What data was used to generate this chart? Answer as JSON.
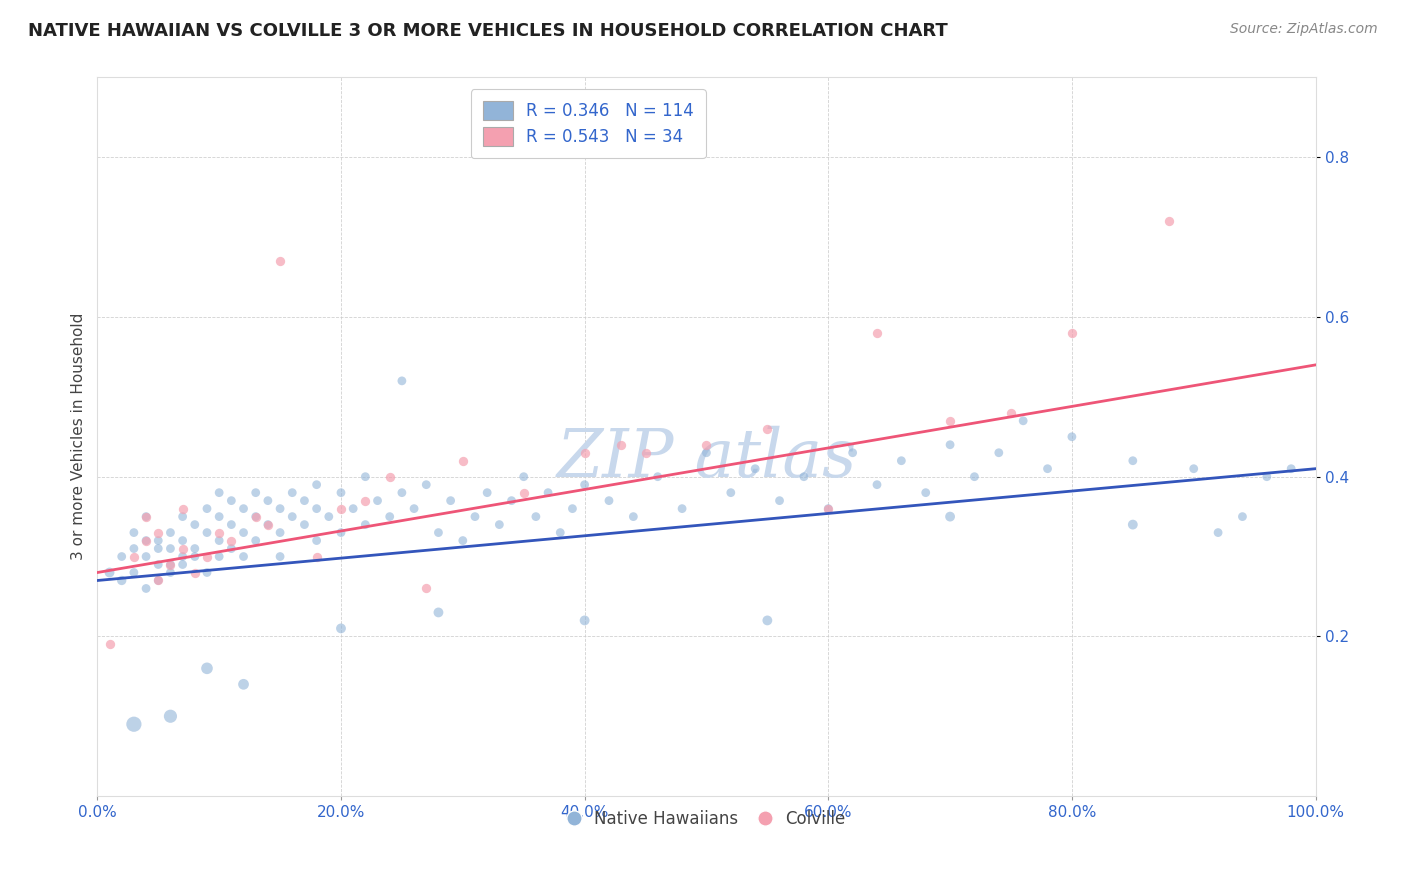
{
  "title": "NATIVE HAWAIIAN VS COLVILLE 3 OR MORE VEHICLES IN HOUSEHOLD CORRELATION CHART",
  "source": "Source: ZipAtlas.com",
  "ylabel": "3 or more Vehicles in Household",
  "xmin": 0.0,
  "xmax": 1.0,
  "ymin": 0.0,
  "ymax": 0.9,
  "xticks": [
    0.0,
    0.2,
    0.4,
    0.6,
    0.8,
    1.0
  ],
  "yticks": [
    0.2,
    0.4,
    0.6,
    0.8
  ],
  "xtick_labels": [
    "0.0%",
    "20.0%",
    "40.0%",
    "60.0%",
    "80.0%",
    "100.0%"
  ],
  "ytick_labels": [
    "20.0%",
    "40.0%",
    "60.0%",
    "80.0%"
  ],
  "legend_blue_label": "R = 0.346   N = 114",
  "legend_pink_label": "R = 0.543   N = 34",
  "legend_bottom_blue": "Native Hawaiians",
  "legend_bottom_pink": "Colville",
  "blue_color": "#92B4D8",
  "pink_color": "#F4A0B0",
  "blue_line_color": "#3355BB",
  "pink_line_color": "#EE5577",
  "watermark_color": "#C8D8EC",
  "bg_color": "#ffffff",
  "grid_color": "#cccccc",
  "blue_line_y0": 0.27,
  "blue_line_y1": 0.41,
  "pink_line_y0": 0.28,
  "pink_line_y1": 0.54,
  "blue_scatter_x": [
    0.01,
    0.02,
    0.02,
    0.03,
    0.03,
    0.03,
    0.04,
    0.04,
    0.04,
    0.04,
    0.05,
    0.05,
    0.05,
    0.05,
    0.06,
    0.06,
    0.06,
    0.06,
    0.07,
    0.07,
    0.07,
    0.07,
    0.08,
    0.08,
    0.08,
    0.09,
    0.09,
    0.09,
    0.1,
    0.1,
    0.1,
    0.1,
    0.11,
    0.11,
    0.11,
    0.12,
    0.12,
    0.12,
    0.13,
    0.13,
    0.13,
    0.14,
    0.14,
    0.15,
    0.15,
    0.15,
    0.16,
    0.16,
    0.17,
    0.17,
    0.18,
    0.18,
    0.18,
    0.19,
    0.2,
    0.2,
    0.21,
    0.22,
    0.22,
    0.23,
    0.24,
    0.25,
    0.25,
    0.26,
    0.27,
    0.28,
    0.29,
    0.3,
    0.31,
    0.32,
    0.33,
    0.34,
    0.35,
    0.36,
    0.37,
    0.38,
    0.39,
    0.4,
    0.42,
    0.44,
    0.46,
    0.48,
    0.5,
    0.52,
    0.54,
    0.56,
    0.58,
    0.6,
    0.62,
    0.64,
    0.66,
    0.68,
    0.7,
    0.72,
    0.74,
    0.76,
    0.78,
    0.8,
    0.85,
    0.9,
    0.92,
    0.94,
    0.96,
    0.98,
    0.03,
    0.06,
    0.09,
    0.12,
    0.2,
    0.28,
    0.4,
    0.55,
    0.7,
    0.85
  ],
  "blue_scatter_y": [
    0.28,
    0.27,
    0.3,
    0.28,
    0.31,
    0.33,
    0.26,
    0.3,
    0.32,
    0.35,
    0.29,
    0.32,
    0.27,
    0.31,
    0.33,
    0.29,
    0.31,
    0.28,
    0.3,
    0.32,
    0.29,
    0.35,
    0.31,
    0.34,
    0.3,
    0.33,
    0.28,
    0.36,
    0.32,
    0.35,
    0.3,
    0.38,
    0.34,
    0.31,
    0.37,
    0.33,
    0.3,
    0.36,
    0.35,
    0.32,
    0.38,
    0.34,
    0.37,
    0.33,
    0.36,
    0.3,
    0.35,
    0.38,
    0.34,
    0.37,
    0.36,
    0.32,
    0.39,
    0.35,
    0.33,
    0.38,
    0.36,
    0.34,
    0.4,
    0.37,
    0.35,
    0.38,
    0.52,
    0.36,
    0.39,
    0.33,
    0.37,
    0.32,
    0.35,
    0.38,
    0.34,
    0.37,
    0.4,
    0.35,
    0.38,
    0.33,
    0.36,
    0.39,
    0.37,
    0.35,
    0.4,
    0.36,
    0.43,
    0.38,
    0.41,
    0.37,
    0.4,
    0.36,
    0.43,
    0.39,
    0.42,
    0.38,
    0.44,
    0.4,
    0.43,
    0.47,
    0.41,
    0.45,
    0.42,
    0.41,
    0.33,
    0.35,
    0.4,
    0.41,
    0.09,
    0.1,
    0.16,
    0.14,
    0.21,
    0.23,
    0.22,
    0.22,
    0.35,
    0.34
  ],
  "blue_scatter_sizes": [
    50,
    45,
    40,
    40,
    40,
    40,
    40,
    40,
    40,
    40,
    40,
    40,
    40,
    40,
    40,
    40,
    40,
    40,
    40,
    40,
    40,
    40,
    40,
    40,
    40,
    40,
    40,
    40,
    40,
    40,
    40,
    40,
    40,
    40,
    40,
    40,
    40,
    40,
    40,
    40,
    40,
    40,
    40,
    40,
    40,
    40,
    40,
    40,
    40,
    40,
    40,
    40,
    40,
    40,
    40,
    40,
    40,
    40,
    40,
    40,
    40,
    40,
    40,
    40,
    40,
    40,
    40,
    40,
    40,
    40,
    40,
    40,
    40,
    40,
    40,
    40,
    40,
    40,
    40,
    40,
    40,
    40,
    40,
    40,
    40,
    40,
    40,
    40,
    40,
    40,
    40,
    40,
    40,
    40,
    40,
    40,
    40,
    40,
    40,
    40,
    40,
    40,
    40,
    40,
    120,
    90,
    70,
    60,
    50,
    50,
    50,
    50,
    50,
    50
  ],
  "pink_scatter_x": [
    0.01,
    0.03,
    0.04,
    0.04,
    0.05,
    0.05,
    0.06,
    0.07,
    0.07,
    0.08,
    0.09,
    0.1,
    0.11,
    0.13,
    0.14,
    0.15,
    0.18,
    0.2,
    0.22,
    0.24,
    0.27,
    0.3,
    0.35,
    0.4,
    0.43,
    0.45,
    0.5,
    0.55,
    0.6,
    0.64,
    0.7,
    0.75,
    0.8,
    0.88
  ],
  "pink_scatter_y": [
    0.19,
    0.3,
    0.32,
    0.35,
    0.27,
    0.33,
    0.29,
    0.31,
    0.36,
    0.28,
    0.3,
    0.33,
    0.32,
    0.35,
    0.34,
    0.67,
    0.3,
    0.36,
    0.37,
    0.4,
    0.26,
    0.42,
    0.38,
    0.43,
    0.44,
    0.43,
    0.44,
    0.46,
    0.36,
    0.58,
    0.47,
    0.48,
    0.58,
    0.72
  ]
}
